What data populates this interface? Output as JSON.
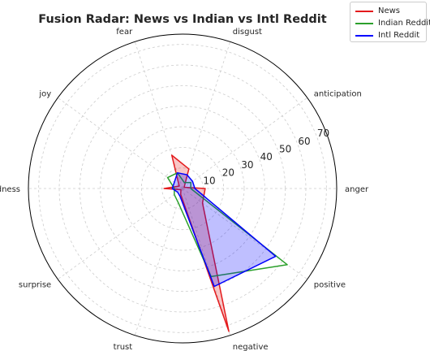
{
  "chart_data": {
    "type": "radar",
    "title": "Fusion Radar: News vs Indian vs Intl Reddit",
    "categories": [
      "anger",
      "anticipation",
      "disgust",
      "fear",
      "joy",
      "sadness",
      "surprise",
      "trust",
      "negative",
      "positive"
    ],
    "rlim": [
      0,
      75
    ],
    "rticks": [
      10,
      20,
      30,
      40,
      50,
      60,
      70
    ],
    "grid": true,
    "legend_position": "top-right",
    "series": [
      {
        "name": "News",
        "color": "#e41a1c",
        "fill": true,
        "values": [
          11,
          1,
          10,
          17,
          2,
          9,
          1,
          3,
          73,
          12
        ]
      },
      {
        "name": "Indian Reddit",
        "color": "#2ca02c",
        "fill": false,
        "values": [
          4,
          5,
          3,
          8,
          9,
          4,
          5,
          7,
          45,
          63
        ]
      },
      {
        "name": "Intl Reddit",
        "color": "#0000ff",
        "fill": true,
        "values": [
          6,
          6,
          7,
          8,
          5,
          5,
          3,
          4,
          50,
          56
        ]
      }
    ]
  }
}
